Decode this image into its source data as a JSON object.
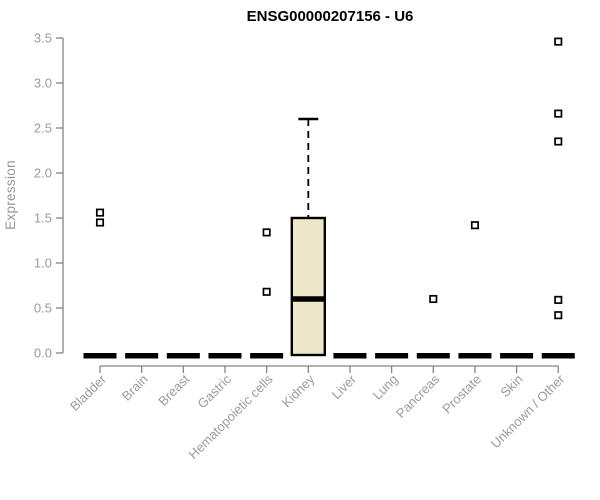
{
  "chart_data": {
    "type": "boxplot",
    "title": "ENSG00000207156 - U6",
    "ylabel": "Expression",
    "ylim": [
      0,
      3.5
    ],
    "yticks": [
      0.0,
      0.5,
      1.0,
      1.5,
      2.0,
      2.5,
      3.0,
      3.5
    ],
    "grid": false,
    "categories": [
      "Bladder",
      "Brain",
      "Breast",
      "Gastric",
      "Hematopoietic cells",
      "Kidney",
      "Liver",
      "Lung",
      "Pancreas",
      "Prostate",
      "Skin",
      "Unknown / Other"
    ],
    "boxes": [
      {
        "category": "Bladder",
        "q1": 0,
        "median": 0,
        "q3": 0,
        "whisker_low": 0,
        "whisker_high": 0,
        "outliers": [
          1.45,
          1.56
        ]
      },
      {
        "category": "Brain",
        "q1": 0,
        "median": 0,
        "q3": 0,
        "whisker_low": 0,
        "whisker_high": 0,
        "outliers": []
      },
      {
        "category": "Breast",
        "q1": 0,
        "median": 0,
        "q3": 0,
        "whisker_low": 0,
        "whisker_high": 0,
        "outliers": []
      },
      {
        "category": "Gastric",
        "q1": 0,
        "median": 0,
        "q3": 0,
        "whisker_low": 0,
        "whisker_high": 0,
        "outliers": []
      },
      {
        "category": "Hematopoietic cells",
        "q1": 0,
        "median": 0,
        "q3": 0,
        "whisker_low": 0,
        "whisker_high": 0,
        "outliers": [
          0.68,
          1.34
        ]
      },
      {
        "category": "Kidney",
        "q1": 0,
        "median": 0.6,
        "q3": 1.5,
        "whisker_low": 0,
        "whisker_high": 2.6,
        "outliers": []
      },
      {
        "category": "Liver",
        "q1": 0,
        "median": 0,
        "q3": 0,
        "whisker_low": 0,
        "whisker_high": 0,
        "outliers": []
      },
      {
        "category": "Lung",
        "q1": 0,
        "median": 0,
        "q3": 0,
        "whisker_low": 0,
        "whisker_high": 0,
        "outliers": []
      },
      {
        "category": "Pancreas",
        "q1": 0,
        "median": 0,
        "q3": 0,
        "whisker_low": 0,
        "whisker_high": 0,
        "outliers": [
          0.6
        ]
      },
      {
        "category": "Prostate",
        "q1": 0,
        "median": 0,
        "q3": 0,
        "whisker_low": 0,
        "whisker_high": 0,
        "outliers": [
          1.42
        ]
      },
      {
        "category": "Skin",
        "q1": 0,
        "median": 0,
        "q3": 0,
        "whisker_low": 0,
        "whisker_high": 0,
        "outliers": []
      },
      {
        "category": "Unknown / Other",
        "q1": 0,
        "median": 0,
        "q3": 0,
        "whisker_low": 0,
        "whisker_high": 0,
        "outliers": [
          0.42,
          0.59,
          2.35,
          2.66,
          3.46
        ]
      }
    ],
    "colors": {
      "box_fill": "#EDE6C8",
      "box_border": "#000000",
      "median": "#000000",
      "whisker": "#000000",
      "outlier_fill": "#ffffff",
      "axis": "#848484",
      "tick_label": "#9b9b9b",
      "title": "#000000",
      "background": "#ffffff"
    },
    "legend": null
  }
}
